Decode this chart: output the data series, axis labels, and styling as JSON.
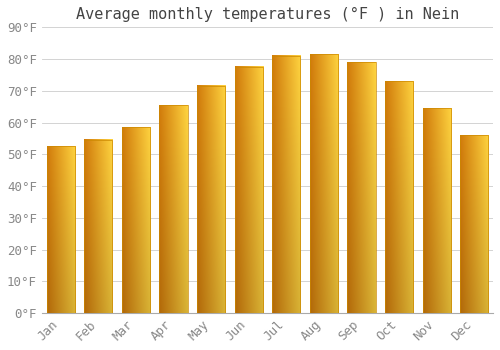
{
  "title": "Average monthly temperatures (°F ) in Nein",
  "months": [
    "Jan",
    "Feb",
    "Mar",
    "Apr",
    "May",
    "Jun",
    "Jul",
    "Aug",
    "Sep",
    "Oct",
    "Nov",
    "Dec"
  ],
  "values": [
    52.5,
    54.5,
    58.5,
    65.5,
    71.5,
    77.5,
    81.0,
    81.5,
    79.0,
    73.0,
    64.5,
    56.0
  ],
  "bar_color_top": "#FFC020",
  "bar_color_bottom": "#E89010",
  "bar_color_left": "#E07800",
  "bar_color_right": "#FFD060",
  "background_color": "#FFFFFF",
  "plot_bg_color": "#FFFFFF",
  "grid_color": "#CCCCCC",
  "text_color": "#888888",
  "title_color": "#444444",
  "ylim": [
    0,
    90
  ],
  "yticks": [
    0,
    10,
    20,
    30,
    40,
    50,
    60,
    70,
    80,
    90
  ],
  "ytick_labels": [
    "0°F",
    "10°F",
    "20°F",
    "30°F",
    "40°F",
    "50°F",
    "60°F",
    "70°F",
    "80°F",
    "90°F"
  ],
  "title_fontsize": 11,
  "tick_fontsize": 9,
  "bar_width": 0.75
}
